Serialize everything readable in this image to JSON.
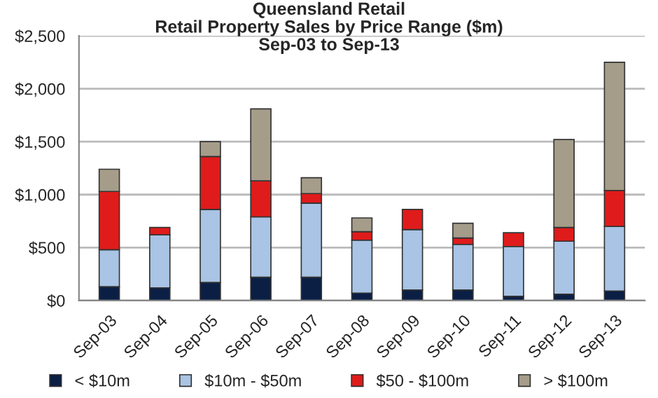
{
  "chart_data": {
    "type": "bar",
    "title": "Queensland Retail\nRetail Property Sales by Price Range ($m)\nSep-03 to Sep-13",
    "categories": [
      "Sep-03",
      "Sep-04",
      "Sep-05",
      "Sep-06",
      "Sep-07",
      "Sep-08",
      "Sep-09",
      "Sep-10",
      "Sep-11",
      "Sep-12",
      "Sep-13"
    ],
    "stacked": true,
    "series": [
      {
        "name": "< $10m",
        "color": "#0b1f45",
        "values": [
          130,
          120,
          170,
          220,
          220,
          70,
          100,
          100,
          40,
          60,
          90
        ]
      },
      {
        "name": "$10m - $50m",
        "color": "#a9c4e4",
        "values": [
          350,
          500,
          690,
          570,
          700,
          500,
          570,
          430,
          470,
          500,
          610
        ]
      },
      {
        "name": "$50 - $100m",
        "color": "#e01b1b",
        "values": [
          550,
          70,
          500,
          340,
          90,
          80,
          190,
          60,
          130,
          130,
          340
        ]
      },
      {
        "name": "> $100m",
        "color": "#a59d8a",
        "values": [
          210,
          null,
          140,
          680,
          150,
          130,
          null,
          140,
          null,
          830,
          1210
        ]
      }
    ],
    "ylim": [
      0,
      2500
    ],
    "yticks": [
      {
        "value": 0,
        "label": "$0"
      },
      {
        "value": 500,
        "label": "$500"
      },
      {
        "value": 1000,
        "label": "$1,000"
      },
      {
        "value": 1500,
        "label": "$1,500"
      },
      {
        "value": 2000,
        "label": "$2,000"
      },
      {
        "value": 2500,
        "label": "$2,500"
      }
    ],
    "grid": "y",
    "legend": "bottom"
  }
}
